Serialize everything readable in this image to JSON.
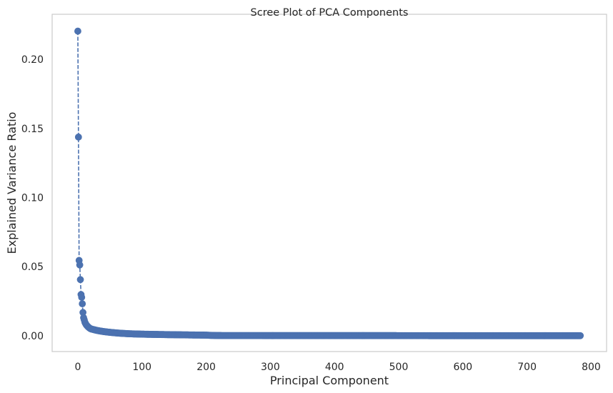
{
  "chart_data": {
    "type": "line",
    "title": "Scree Plot of PCA Components",
    "xlabel": "Principal Component",
    "ylabel": "Explained Variance Ratio",
    "xlim": [
      -40,
      824
    ],
    "ylim": [
      -0.0115,
      0.2327
    ],
    "x_ticks": [
      0,
      100,
      200,
      300,
      400,
      500,
      600,
      700,
      800
    ],
    "y_ticks": [
      0.0,
      0.05,
      0.1,
      0.15,
      0.2
    ],
    "y_tick_labels": [
      "0.00",
      "0.05",
      "0.10",
      "0.15",
      "0.20"
    ],
    "grid": false,
    "line_style": "dashed",
    "marker": "circle",
    "colors": {
      "series": "#4c72b0",
      "frame": "#cccccc",
      "text": "#262626"
    },
    "series": [
      {
        "n_components": 784,
        "x_start": 0,
        "head_values": [
          0.2205,
          0.1438,
          0.0545,
          0.0512,
          0.0406,
          0.0298,
          0.0278,
          0.0231,
          0.0168,
          0.013,
          0.0114,
          0.0098,
          0.0088,
          0.008,
          0.0074,
          0.0069,
          0.0064,
          0.006,
          0.0056,
          0.0053,
          0.005
        ],
        "tail_anchors": [
          [
            20,
            0.005
          ],
          [
            30,
            0.0038
          ],
          [
            40,
            0.003
          ],
          [
            60,
            0.002
          ],
          [
            80,
            0.0014
          ],
          [
            100,
            0.0011
          ],
          [
            150,
            0.0007
          ],
          [
            200,
            0.0004
          ],
          [
            220,
            0.0001
          ],
          [
            300,
            5e-05
          ],
          [
            783,
            0.0
          ]
        ]
      }
    ]
  }
}
